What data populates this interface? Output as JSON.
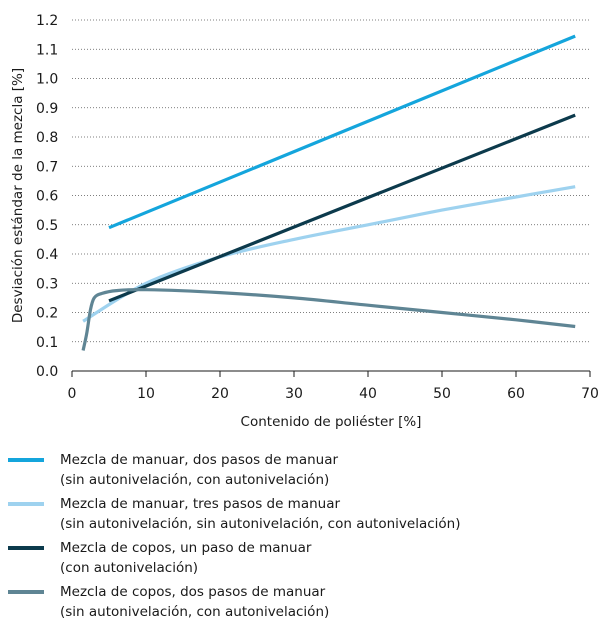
{
  "chart_data": {
    "type": "line",
    "title": "",
    "xlabel": "Contenido de poliéster [%]",
    "ylabel": "Desviación estándar de la mezcla [%]",
    "xlim": [
      0,
      70
    ],
    "ylim": [
      0,
      1.2
    ],
    "x_ticks": [
      "0",
      "10",
      "20",
      "30",
      "40",
      "50",
      "60",
      "70"
    ],
    "y_ticks": [
      "0.0",
      "0.1",
      "0.2",
      "0.3",
      "0.4",
      "0.5",
      "0.6",
      "0.7",
      "0.8",
      "0.9",
      "1.0",
      "1.1",
      "1.2"
    ],
    "grid": "horizontal-dotted",
    "legend_placement": "bottom",
    "series": [
      {
        "name": "Mezcla de manuar, dos pasos de manuar",
        "note": "(sin autonivelación, con autonivelación)",
        "color": "#14a5dc",
        "x": [
          5,
          68
        ],
        "y": [
          0.49,
          1.145
        ]
      },
      {
        "name": "Mezcla de manuar, tres pasos de manuar",
        "note": "(sin autonivelación, sin autonivelación, con autonivelación)",
        "color": "#9ed2ef",
        "x": [
          1.5,
          10,
          20,
          30,
          40,
          50,
          60,
          68
        ],
        "y": [
          0.17,
          0.3,
          0.39,
          0.45,
          0.5,
          0.55,
          0.595,
          0.63
        ]
      },
      {
        "name": "Mezcla de copos, un paso de manuar",
        "note": "(con autonivelación)",
        "color": "#0c3a4c",
        "x": [
          5,
          68
        ],
        "y": [
          0.24,
          0.875
        ]
      },
      {
        "name": "Mezcla de copos, dos pasos de manuar",
        "note": "(sin autonivelación, con autonivelación)",
        "color": "#5f8594",
        "x": [
          1.5,
          2,
          2.5,
          3,
          4,
          6,
          10,
          20,
          30,
          40,
          50,
          60,
          68
        ],
        "y": [
          0.07,
          0.13,
          0.21,
          0.25,
          0.265,
          0.275,
          0.278,
          0.268,
          0.25,
          0.225,
          0.2,
          0.175,
          0.152
        ]
      }
    ]
  }
}
